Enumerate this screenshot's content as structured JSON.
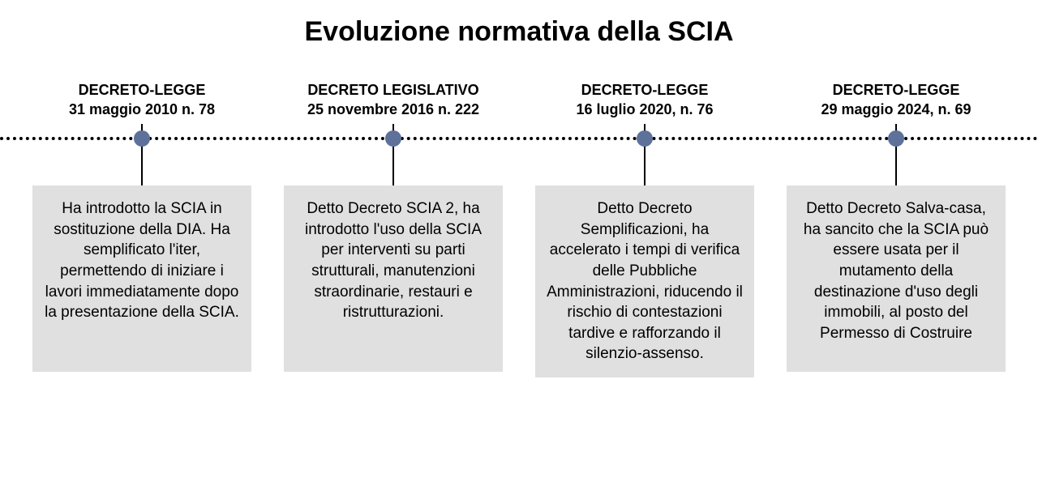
{
  "title": "Evoluzione normativa della SCIA",
  "colors": {
    "background": "#ffffff",
    "text": "#000000",
    "node": "#5d719a",
    "desc_bg": "#e0e0e0",
    "line": "#000000"
  },
  "typography": {
    "title_fontsize": 34,
    "title_weight": 800,
    "header_fontsize": 18,
    "header_weight": 700,
    "desc_fontsize": 19
  },
  "timeline": {
    "type": "horizontal-timeline",
    "line_style": "dotted",
    "line_width": 4,
    "node_radius": 10,
    "events": [
      {
        "header_line1": "DECRETO-LEGGE",
        "header_line2": "31 maggio 2010 n. 78",
        "description": "Ha introdotto la SCIA in sostituzione della DIA. Ha semplificato l'iter, permettendo di iniziare i lavori immediatamente dopo la presentazione della SCIA."
      },
      {
        "header_line1": "DECRETO LEGISLATIVO",
        "header_line2": "25 novembre 2016 n. 222",
        "description": "Detto Decreto SCIA 2, ha introdotto l'uso della SCIA per interventi su parti strutturali, manutenzioni straordinarie, restauri e ristrutturazioni."
      },
      {
        "header_line1": "DECRETO-LEGGE",
        "header_line2": "16 luglio 2020, n. 76",
        "description": "Detto Decreto Semplificazioni, ha accelerato i tempi di verifica delle Pubbliche Amministrazioni, riducendo il rischio di contestazioni tardive e rafforzando il silenzio-assenso."
      },
      {
        "header_line1": "DECRETO-LEGGE",
        "header_line2": "29 maggio 2024, n. 69",
        "description": "Detto Decreto Salva-casa, ha sancito che la SCIA può essere usata per il mutamento della destinazione d'uso degli immobili, al posto del Permesso di Costruire"
      }
    ]
  }
}
